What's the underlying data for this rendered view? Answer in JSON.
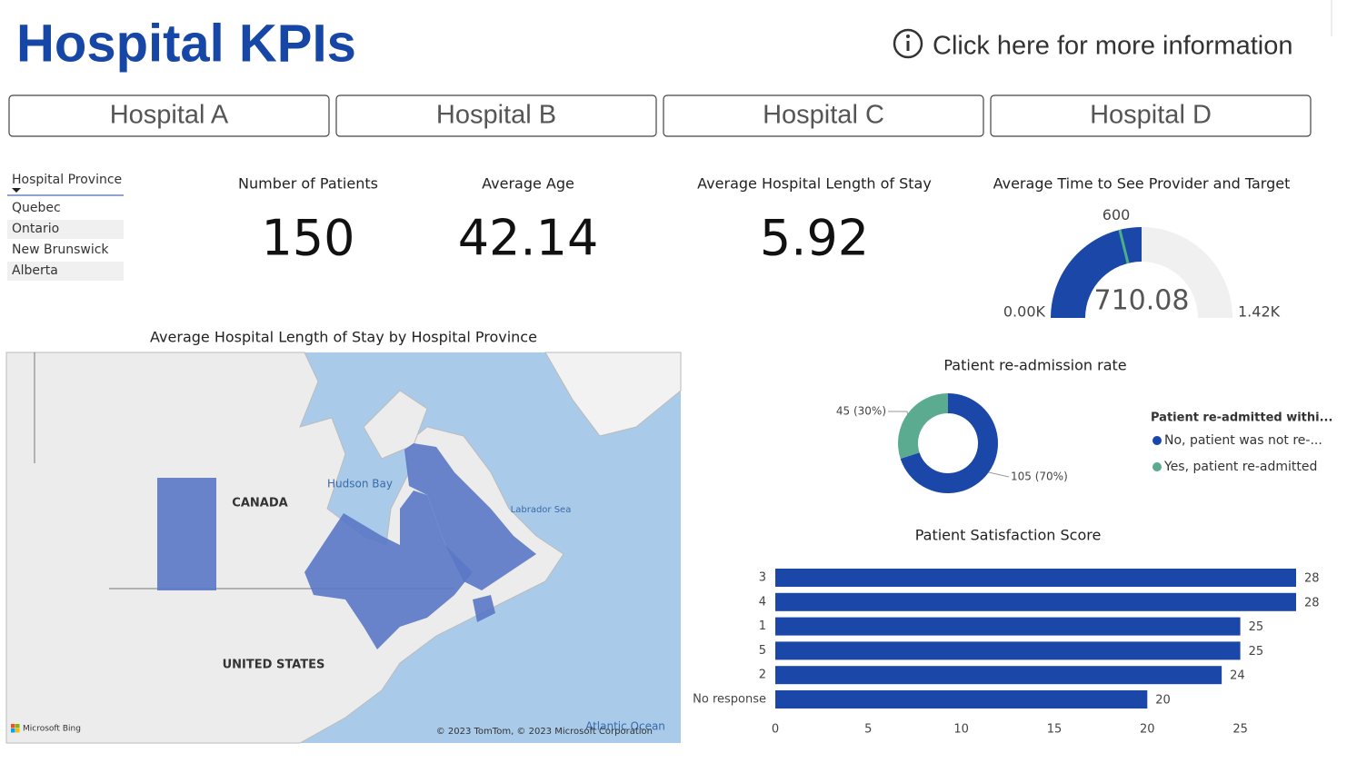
{
  "header": {
    "title": "Hospital KPIs",
    "info": "Click here for more information"
  },
  "tabs": [
    "Hospital A",
    "Hospital B",
    "Hospital C",
    "Hospital D"
  ],
  "slicer": {
    "title": "Hospital Province",
    "items": [
      "Quebec",
      "Ontario",
      "New Brunswick",
      "Alberta"
    ]
  },
  "kpis": [
    {
      "label": "Number of Patients",
      "value": 150
    },
    {
      "label": "Average Age",
      "value": 42.14
    },
    {
      "label": "Average Hospital Length of Stay",
      "value": 5.92
    }
  ],
  "gauge": {
    "title": "Average Time to See Provider and Target",
    "value": 710.08,
    "target": 600,
    "min": {
      "value": 0,
      "label": "0.00K"
    },
    "max": {
      "value": 1420,
      "label": "1.42K"
    },
    "color": "#1a47a8",
    "target_color": "#4caf8a"
  },
  "map": {
    "title": "Average Hospital Length of Stay by Hospital Province",
    "labels": [
      "CANADA",
      "UNITED STATES",
      "Hudson Bay",
      "Labrador Sea",
      "Atlantic Ocean"
    ],
    "logo": "Microsoft Bing",
    "attribution": "© 2023 TomTom, © 2023 Microsoft Corporation"
  },
  "donut": {
    "type": "pie",
    "title": "Patient re-admission rate",
    "legend_title": "Patient re-admitted withi...",
    "series": [
      {
        "name": "No, patient was not re-...",
        "color": "#1a47a8",
        "value": 105,
        "value_label": "105 (70%)"
      },
      {
        "name": "Yes, patient re-admitted",
        "color": "#5aab8f",
        "value": 45,
        "value_label": "45 (30%)"
      }
    ]
  },
  "bar": {
    "type": "bar",
    "title": "Patient Satisfaction Score",
    "categories": [
      "3",
      "4",
      "1",
      "5",
      "2",
      "No response"
    ],
    "values": [
      28,
      28,
      25,
      25,
      24,
      20
    ],
    "color": "#1a47a8",
    "xlim": [
      0,
      28
    ],
    "xticks": [
      0,
      5,
      10,
      15,
      20,
      25
    ]
  }
}
